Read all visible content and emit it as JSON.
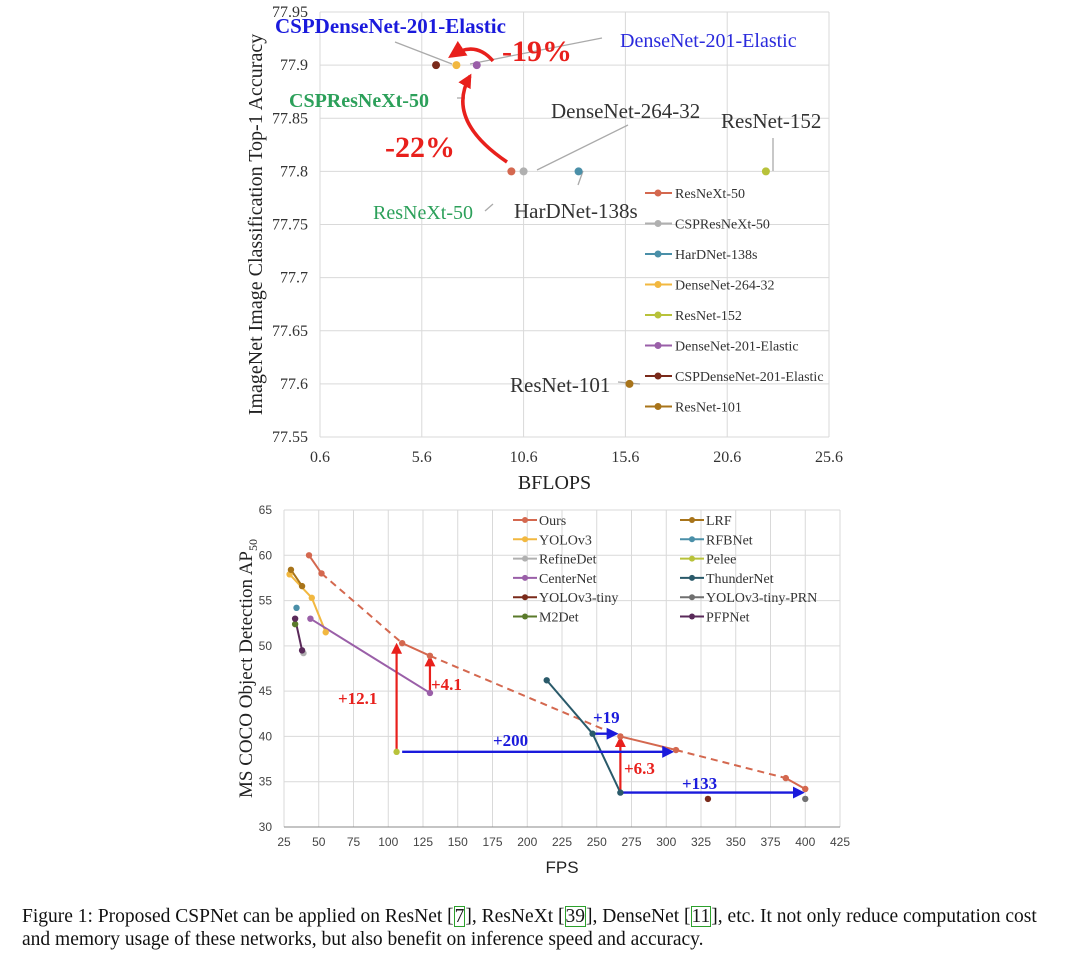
{
  "chart_data": [
    {
      "type": "scatter",
      "title": "",
      "xlabel": "BFLOPS",
      "ylabel": "ImageNet Image Classification Top-1 Accuracy",
      "xlim": [
        0.6,
        25.6
      ],
      "ylim": [
        77.55,
        77.95
      ],
      "xticks": [
        "0.6",
        "5.6",
        "10.6",
        "15.6",
        "20.6",
        "25.6"
      ],
      "yticks": [
        "77.55",
        "77.6",
        "77.65",
        "77.7",
        "77.75",
        "77.8",
        "77.85",
        "77.9",
        "77.95"
      ],
      "grid": true,
      "legend_position": "right",
      "series": [
        {
          "name": "ResNeXt-50",
          "color": "#d4684f",
          "points": [
            {
              "x": 10.0,
              "y": 77.8
            }
          ]
        },
        {
          "name": "CSPResNeXt-50",
          "color": "#b0b0b0",
          "points": [
            {
              "x": 10.6,
              "y": 77.8
            }
          ]
        },
        {
          "name": "HarDNet-138s",
          "color": "#4a8fa8",
          "points": [
            {
              "x": 13.3,
              "y": 77.8
            }
          ]
        },
        {
          "name": "DenseNet-264-32",
          "color": "#f2b840",
          "points": [
            {
              "x": 7.3,
              "y": 77.9
            }
          ]
        },
        {
          "name": "ResNet-152",
          "color": "#b8c23a",
          "points": [
            {
              "x": 22.5,
              "y": 77.8
            }
          ]
        },
        {
          "name": "DenseNet-201-Elastic",
          "color": "#9a5fa8",
          "points": [
            {
              "x": 8.3,
              "y": 77.9
            }
          ]
        },
        {
          "name": "CSPDenseNet-201-Elastic",
          "color": "#7a2a1a",
          "points": [
            {
              "x": 6.3,
              "y": 77.9
            }
          ]
        },
        {
          "name": "ResNet-101",
          "color": "#a8741a",
          "points": [
            {
              "x": 15.8,
              "y": 77.6
            }
          ]
        }
      ],
      "annotations": [
        {
          "text": "CSPDenseNet-201-Elastic",
          "color": "#1a1adc"
        },
        {
          "text": "DenseNet-201-Elastic",
          "color": "#2a2adc"
        },
        {
          "text": "CSPResNeXt-50",
          "color": "#2ca05a"
        },
        {
          "text": "DenseNet-264-32",
          "color": "#333333"
        },
        {
          "text": "ResNet-152",
          "color": "#333333"
        },
        {
          "text": "ResNeXt-50",
          "color": "#2ca05a"
        },
        {
          "text": "HarDNet-138s",
          "color": "#333333"
        },
        {
          "text": "ResNet-101",
          "color": "#333333"
        },
        {
          "text": "-19%",
          "color": "#e8201c"
        },
        {
          "text": "-22%",
          "color": "#e8201c"
        }
      ]
    },
    {
      "type": "line",
      "title": "",
      "xlabel": "FPS",
      "ylabel": "MS COCO Object Detection AP",
      "ylabel_sub": "50",
      "xlim": [
        25,
        425
      ],
      "ylim": [
        30,
        65
      ],
      "xticks": [
        "25",
        "50",
        "75",
        "100",
        "125",
        "150",
        "175",
        "200",
        "225",
        "250",
        "275",
        "300",
        "325",
        "350",
        "375",
        "400",
        "425"
      ],
      "yticks": [
        "30",
        "35",
        "40",
        "45",
        "50",
        "55",
        "60",
        "65"
      ],
      "grid": true,
      "legend_position": "top",
      "series": [
        {
          "name": "Ours",
          "color": "#d4684f",
          "points": [
            [
              43,
              60.0
            ],
            [
              52,
              58.0
            ],
            [
              110,
              50.3
            ],
            [
              130,
              48.9
            ],
            [
              267,
              40.0
            ],
            [
              307,
              38.5
            ],
            [
              386,
              35.4
            ],
            [
              400,
              34.2
            ]
          ]
        },
        {
          "name": "YOLOv3",
          "color": "#f2b840",
          "points": [
            [
              29,
              57.9
            ],
            [
              45,
              55.3
            ],
            [
              55,
              51.5
            ]
          ]
        },
        {
          "name": "RefineDet",
          "color": "#b0b0b0",
          "points": [
            [
              39,
              49.2
            ]
          ]
        },
        {
          "name": "CenterNet",
          "color": "#9a5fa8",
          "points": [
            [
              44,
              53.0
            ],
            [
              130,
              44.8
            ]
          ]
        },
        {
          "name": "YOLOv3-tiny",
          "color": "#7a2a1a",
          "points": [
            [
              330,
              33.1
            ]
          ]
        },
        {
          "name": "M2Det",
          "color": "#5a7a2a",
          "points": [
            [
              33,
              52.4
            ]
          ]
        },
        {
          "name": "LRF",
          "color": "#a8741a",
          "points": [
            [
              30,
              58.4
            ],
            [
              38,
              56.6
            ]
          ]
        },
        {
          "name": "RFBNet",
          "color": "#4a8fa8",
          "points": [
            [
              34,
              54.2
            ]
          ]
        },
        {
          "name": "Pelee",
          "color": "#b8c23a",
          "points": [
            [
              106,
              38.3
            ]
          ]
        },
        {
          "name": "ThunderNet",
          "color": "#2a5a6a",
          "points": [
            [
              214,
              46.2
            ],
            [
              247,
              40.3
            ],
            [
              267,
              33.8
            ]
          ]
        },
        {
          "name": "YOLOv3-tiny-PRN",
          "color": "#707070",
          "points": [
            [
              400,
              33.1
            ]
          ]
        },
        {
          "name": "PFPNet",
          "color": "#5a2a5a",
          "points": [
            [
              33,
              53.0
            ],
            [
              38,
              49.5
            ]
          ]
        }
      ],
      "annotations": [
        {
          "text": "+12.1",
          "color": "#e8201c"
        },
        {
          "text": "+4.1",
          "color": "#e8201c"
        },
        {
          "text": "+6.3",
          "color": "#e8201c"
        },
        {
          "text": "+200",
          "color": "#1a1adc"
        },
        {
          "text": "+19",
          "color": "#1a1adc"
        },
        {
          "text": "+133",
          "color": "#1a1adc"
        }
      ]
    }
  ],
  "caption": {
    "prefix": "Figure 1: Proposed CSPNet can be applied on ResNet [",
    "ref1": "7",
    "mid1": "], ResNeXt [",
    "ref2": "39",
    "mid2": "], DenseNet [",
    "ref3": "11",
    "suffix": "], etc. It not only reduce computation cost and memory usage of these networks, but also benefit on inference speed and accuracy."
  }
}
